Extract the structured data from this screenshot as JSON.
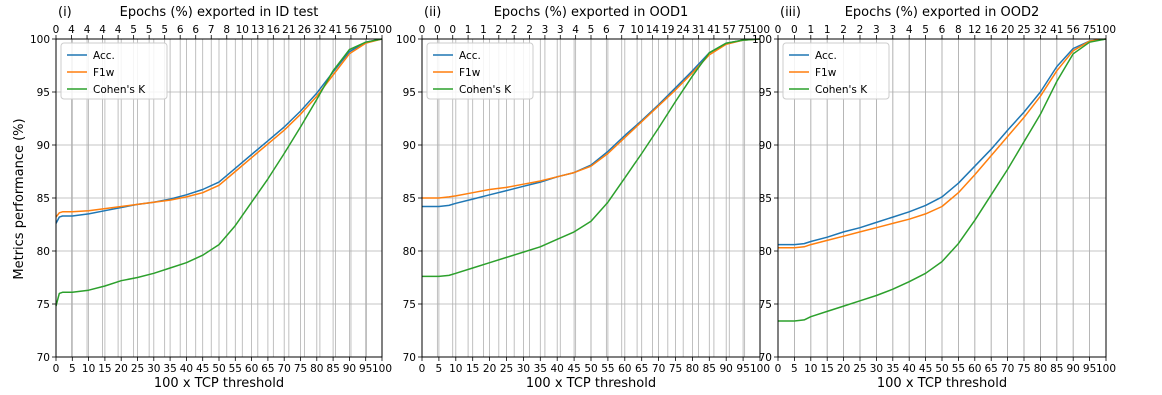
{
  "figure": {
    "ylabel": "Metrics performance (%)",
    "xlabel_bottom": "100 x TCP threshold"
  },
  "colors": {
    "acc": "#1f77b4",
    "f1w": "#ff7f0e",
    "kappa": "#2ca02c"
  },
  "chart_data": [
    {
      "type": "line",
      "panel_label": "(i)",
      "title": "Epochs (%) exported in ID test",
      "xlabel": "100 x TCP threshold",
      "ylabel": "Metrics performance (%)",
      "xlim": [
        0,
        100
      ],
      "ylim": [
        70,
        100
      ],
      "xticks": [
        "0",
        "5",
        "10",
        "15",
        "20",
        "25",
        "30",
        "35",
        "40",
        "45",
        "50",
        "55",
        "60",
        "65",
        "70",
        "75",
        "80",
        "85",
        "90",
        "95",
        "100"
      ],
      "yticks": [
        "70",
        "75",
        "80",
        "85",
        "90",
        "95",
        "100"
      ],
      "top_ticks": [
        "0",
        "4",
        "4",
        "4",
        "4",
        "5",
        "5",
        "5",
        "6",
        "6",
        "7",
        "8",
        "10",
        "13",
        "16",
        "21",
        "26",
        "32",
        "41",
        "56",
        "75",
        "100"
      ],
      "grid": true,
      "legend": "upper-left",
      "x": [
        0,
        1,
        2,
        5,
        10,
        15,
        20,
        25,
        30,
        35,
        40,
        45,
        50,
        55,
        60,
        65,
        70,
        75,
        80,
        85,
        90,
        95,
        100
      ],
      "series": [
        {
          "name": "Acc.",
          "values": [
            82.6,
            83.2,
            83.3,
            83.3,
            83.5,
            83.8,
            84.1,
            84.4,
            84.6,
            84.9,
            85.3,
            85.8,
            86.5,
            87.8,
            89.1,
            90.4,
            91.7,
            93.2,
            94.9,
            96.9,
            98.8,
            99.7,
            100
          ]
        },
        {
          "name": "F1w",
          "values": [
            83.2,
            83.6,
            83.7,
            83.7,
            83.8,
            84.0,
            84.2,
            84.4,
            84.6,
            84.8,
            85.1,
            85.5,
            86.2,
            87.5,
            88.8,
            90.1,
            91.4,
            92.9,
            94.6,
            96.6,
            98.6,
            99.6,
            100
          ]
        },
        {
          "name": "Cohen's K",
          "values": [
            74.8,
            76.0,
            76.1,
            76.1,
            76.3,
            76.7,
            77.2,
            77.5,
            77.9,
            78.4,
            78.9,
            79.6,
            80.6,
            82.4,
            84.6,
            86.8,
            89.2,
            91.7,
            94.3,
            97.0,
            99.0,
            99.7,
            100
          ]
        }
      ]
    },
    {
      "type": "line",
      "panel_label": "(ii)",
      "title": "Epochs (%) exported in OOD1",
      "xlabel": "100 x TCP threshold",
      "ylabel": "",
      "xlim": [
        0,
        100
      ],
      "ylim": [
        70,
        100
      ],
      "xticks": [
        "0",
        "5",
        "10",
        "15",
        "20",
        "25",
        "30",
        "35",
        "40",
        "45",
        "50",
        "55",
        "60",
        "65",
        "70",
        "75",
        "80",
        "85",
        "90",
        "95",
        "100"
      ],
      "yticks": [
        "70",
        "75",
        "80",
        "85",
        "90",
        "95",
        "100"
      ],
      "top_ticks": [
        "0",
        "0",
        "0",
        "1",
        "1",
        "2",
        "2",
        "2",
        "3",
        "3",
        "4",
        "5",
        "6",
        "7",
        "10",
        "14",
        "19",
        "24",
        "31",
        "41",
        "57",
        "75",
        "100"
      ],
      "grid": true,
      "legend": "upper-left",
      "x": [
        0,
        2,
        5,
        8,
        10,
        15,
        20,
        25,
        30,
        35,
        40,
        45,
        50,
        55,
        60,
        65,
        70,
        75,
        80,
        85,
        90,
        95,
        100
      ],
      "series": [
        {
          "name": "Acc.",
          "values": [
            84.2,
            84.2,
            84.2,
            84.3,
            84.5,
            84.9,
            85.3,
            85.7,
            86.1,
            86.5,
            87.0,
            87.4,
            88.1,
            89.4,
            90.9,
            92.3,
            93.8,
            95.4,
            97.0,
            98.7,
            99.6,
            99.9,
            100
          ]
        },
        {
          "name": "F1w",
          "values": [
            85.0,
            85.0,
            85.0,
            85.1,
            85.2,
            85.5,
            85.8,
            86.0,
            86.3,
            86.6,
            87.0,
            87.4,
            88.0,
            89.2,
            90.7,
            92.2,
            93.7,
            95.2,
            96.8,
            98.5,
            99.5,
            99.9,
            100
          ]
        },
        {
          "name": "Cohen's K",
          "values": [
            77.6,
            77.6,
            77.6,
            77.7,
            77.9,
            78.4,
            78.9,
            79.4,
            79.9,
            80.4,
            81.1,
            81.8,
            82.8,
            84.6,
            86.9,
            89.2,
            91.6,
            94.1,
            96.5,
            98.7,
            99.6,
            99.9,
            100
          ]
        }
      ]
    },
    {
      "type": "line",
      "panel_label": "(iii)",
      "title": "Epochs (%) exported in OOD2",
      "xlabel": "100 x TCP threshold",
      "ylabel": "",
      "xlim": [
        0,
        100
      ],
      "ylim": [
        70,
        100
      ],
      "xticks": [
        "0",
        "5",
        "10",
        "15",
        "20",
        "25",
        "30",
        "35",
        "40",
        "45",
        "50",
        "55",
        "60",
        "65",
        "70",
        "75",
        "80",
        "85",
        "90",
        "95",
        "100"
      ],
      "yticks": [
        "70",
        "75",
        "80",
        "85",
        "90",
        "95",
        "100"
      ],
      "top_ticks": [
        "0",
        "0",
        "1",
        "1",
        "2",
        "2",
        "3",
        "3",
        "4",
        "5",
        "6",
        "8",
        "12",
        "16",
        "20",
        "25",
        "32",
        "41",
        "56",
        "75",
        "100"
      ],
      "grid": true,
      "legend": "upper-left",
      "x": [
        0,
        2,
        5,
        8,
        10,
        15,
        20,
        25,
        30,
        35,
        40,
        45,
        50,
        55,
        60,
        65,
        70,
        75,
        80,
        85,
        90,
        95,
        100
      ],
      "series": [
        {
          "name": "Acc.",
          "values": [
            80.6,
            80.6,
            80.6,
            80.7,
            80.9,
            81.3,
            81.8,
            82.2,
            82.7,
            83.2,
            83.7,
            84.3,
            85.1,
            86.4,
            88.0,
            89.6,
            91.4,
            93.1,
            95.0,
            97.4,
            99.1,
            99.8,
            100
          ]
        },
        {
          "name": "F1w",
          "values": [
            80.3,
            80.3,
            80.3,
            80.4,
            80.6,
            81.0,
            81.4,
            81.8,
            82.2,
            82.6,
            83.0,
            83.5,
            84.2,
            85.5,
            87.2,
            89.0,
            90.8,
            92.6,
            94.6,
            97.0,
            98.9,
            99.8,
            100
          ]
        },
        {
          "name": "Cohen's K",
          "values": [
            73.4,
            73.4,
            73.4,
            73.5,
            73.8,
            74.3,
            74.8,
            75.3,
            75.8,
            76.4,
            77.1,
            77.9,
            79.0,
            80.7,
            82.9,
            85.3,
            87.7,
            90.3,
            92.9,
            96.0,
            98.6,
            99.7,
            100
          ]
        }
      ]
    }
  ]
}
